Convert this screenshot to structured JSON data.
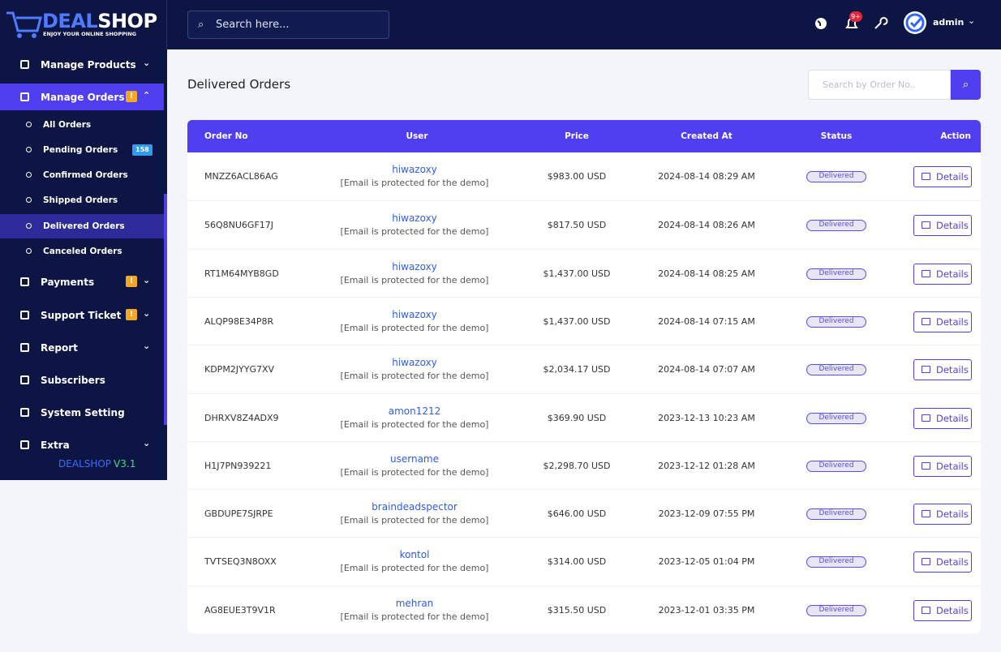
{
  "brand": {
    "name_a": "DEAL",
    "name_b": "SHOP",
    "tagline": "ENJOY YOUR ONLINE SHOPPING"
  },
  "topbar": {
    "search_placeholder": "Search here...",
    "notification_badge": "9+",
    "user": "admin"
  },
  "sidebar": {
    "items": [
      {
        "label": "Manage Products"
      },
      {
        "label": "Manage Orders",
        "badge": "!",
        "active": true,
        "subitems": [
          {
            "label": "All Orders"
          },
          {
            "label": "Pending Orders",
            "badge": "158"
          },
          {
            "label": "Confirmed Orders"
          },
          {
            "label": "Shipped Orders"
          },
          {
            "label": "Delivered Orders",
            "active": true
          },
          {
            "label": "Canceled Orders"
          }
        ]
      },
      {
        "label": "Payments",
        "badge": "!"
      },
      {
        "label": "Support Ticket",
        "badge": "!"
      },
      {
        "label": "Report"
      },
      {
        "label": "Subscribers"
      },
      {
        "label": "System Setting"
      },
      {
        "label": "Extra"
      }
    ],
    "version_name": "DEALSHOP",
    "version_number": "V3.1"
  },
  "page_title": "Delivered Orders",
  "order_search_placeholder": "Search by Order No..",
  "table": {
    "columns": [
      "Order No",
      "User",
      "Price",
      "Created At",
      "Status",
      "Action"
    ],
    "rows": [
      {
        "order_no": "MNZZ6ACL86AG",
        "user": "hiwazoxy",
        "email": "[Email is protected for the demo]",
        "price": "$983.00 USD",
        "created_at": "2024-08-14 08:29 AM",
        "status": "Delivered",
        "action": "Details"
      },
      {
        "order_no": "56Q8NU6GF17J",
        "user": "hiwazoxy",
        "email": "[Email is protected for the demo]",
        "price": "$817.50 USD",
        "created_at": "2024-08-14 08:26 AM",
        "status": "Delivered",
        "action": "Details"
      },
      {
        "order_no": "RT1M64MYB8GD",
        "user": "hiwazoxy",
        "email": "[Email is protected for the demo]",
        "price": "$1,437.00 USD",
        "created_at": "2024-08-14 08:25 AM",
        "status": "Delivered",
        "action": "Details"
      },
      {
        "order_no": "ALQP98E34P8R",
        "user": "hiwazoxy",
        "email": "[Email is protected for the demo]",
        "price": "$1,437.00 USD",
        "created_at": "2024-08-14 07:15 AM",
        "status": "Delivered",
        "action": "Details"
      },
      {
        "order_no": "KDPM2JYYG7XV",
        "user": "hiwazoxy",
        "email": "[Email is protected for the demo]",
        "price": "$2,034.17 USD",
        "created_at": "2024-08-14 07:07 AM",
        "status": "Delivered",
        "action": "Details"
      },
      {
        "order_no": "DHRXV8Z4ADX9",
        "user": "amon1212",
        "email": "[Email is protected for the demo]",
        "price": "$369.90 USD",
        "created_at": "2023-12-13 10:23 AM",
        "status": "Delivered",
        "action": "Details"
      },
      {
        "order_no": "H1J7PN939221",
        "user": "username",
        "email": "[Email is protected for the demo]",
        "price": "$2,298.70 USD",
        "created_at": "2023-12-12 01:28 AM",
        "status": "Delivered",
        "action": "Details"
      },
      {
        "order_no": "GBDUPE7SJRPE",
        "user": "braindeadspector",
        "email": "[Email is protected for the demo]",
        "price": "$646.00 USD",
        "created_at": "2023-12-09 07:55 PM",
        "status": "Delivered",
        "action": "Details"
      },
      {
        "order_no": "TVTSEQ3N8OXX",
        "user": "kontol",
        "email": "[Email is protected for the demo]",
        "price": "$314.00 USD",
        "created_at": "2023-12-05 01:04 PM",
        "status": "Delivered",
        "action": "Details"
      },
      {
        "order_no": "AG8EUE3T9V1R",
        "user": "mehran",
        "email": "[Email is protected for the demo]",
        "price": "$315.50 USD",
        "created_at": "2023-12-01 03:35 PM",
        "status": "Delivered",
        "action": "Details"
      }
    ]
  }
}
